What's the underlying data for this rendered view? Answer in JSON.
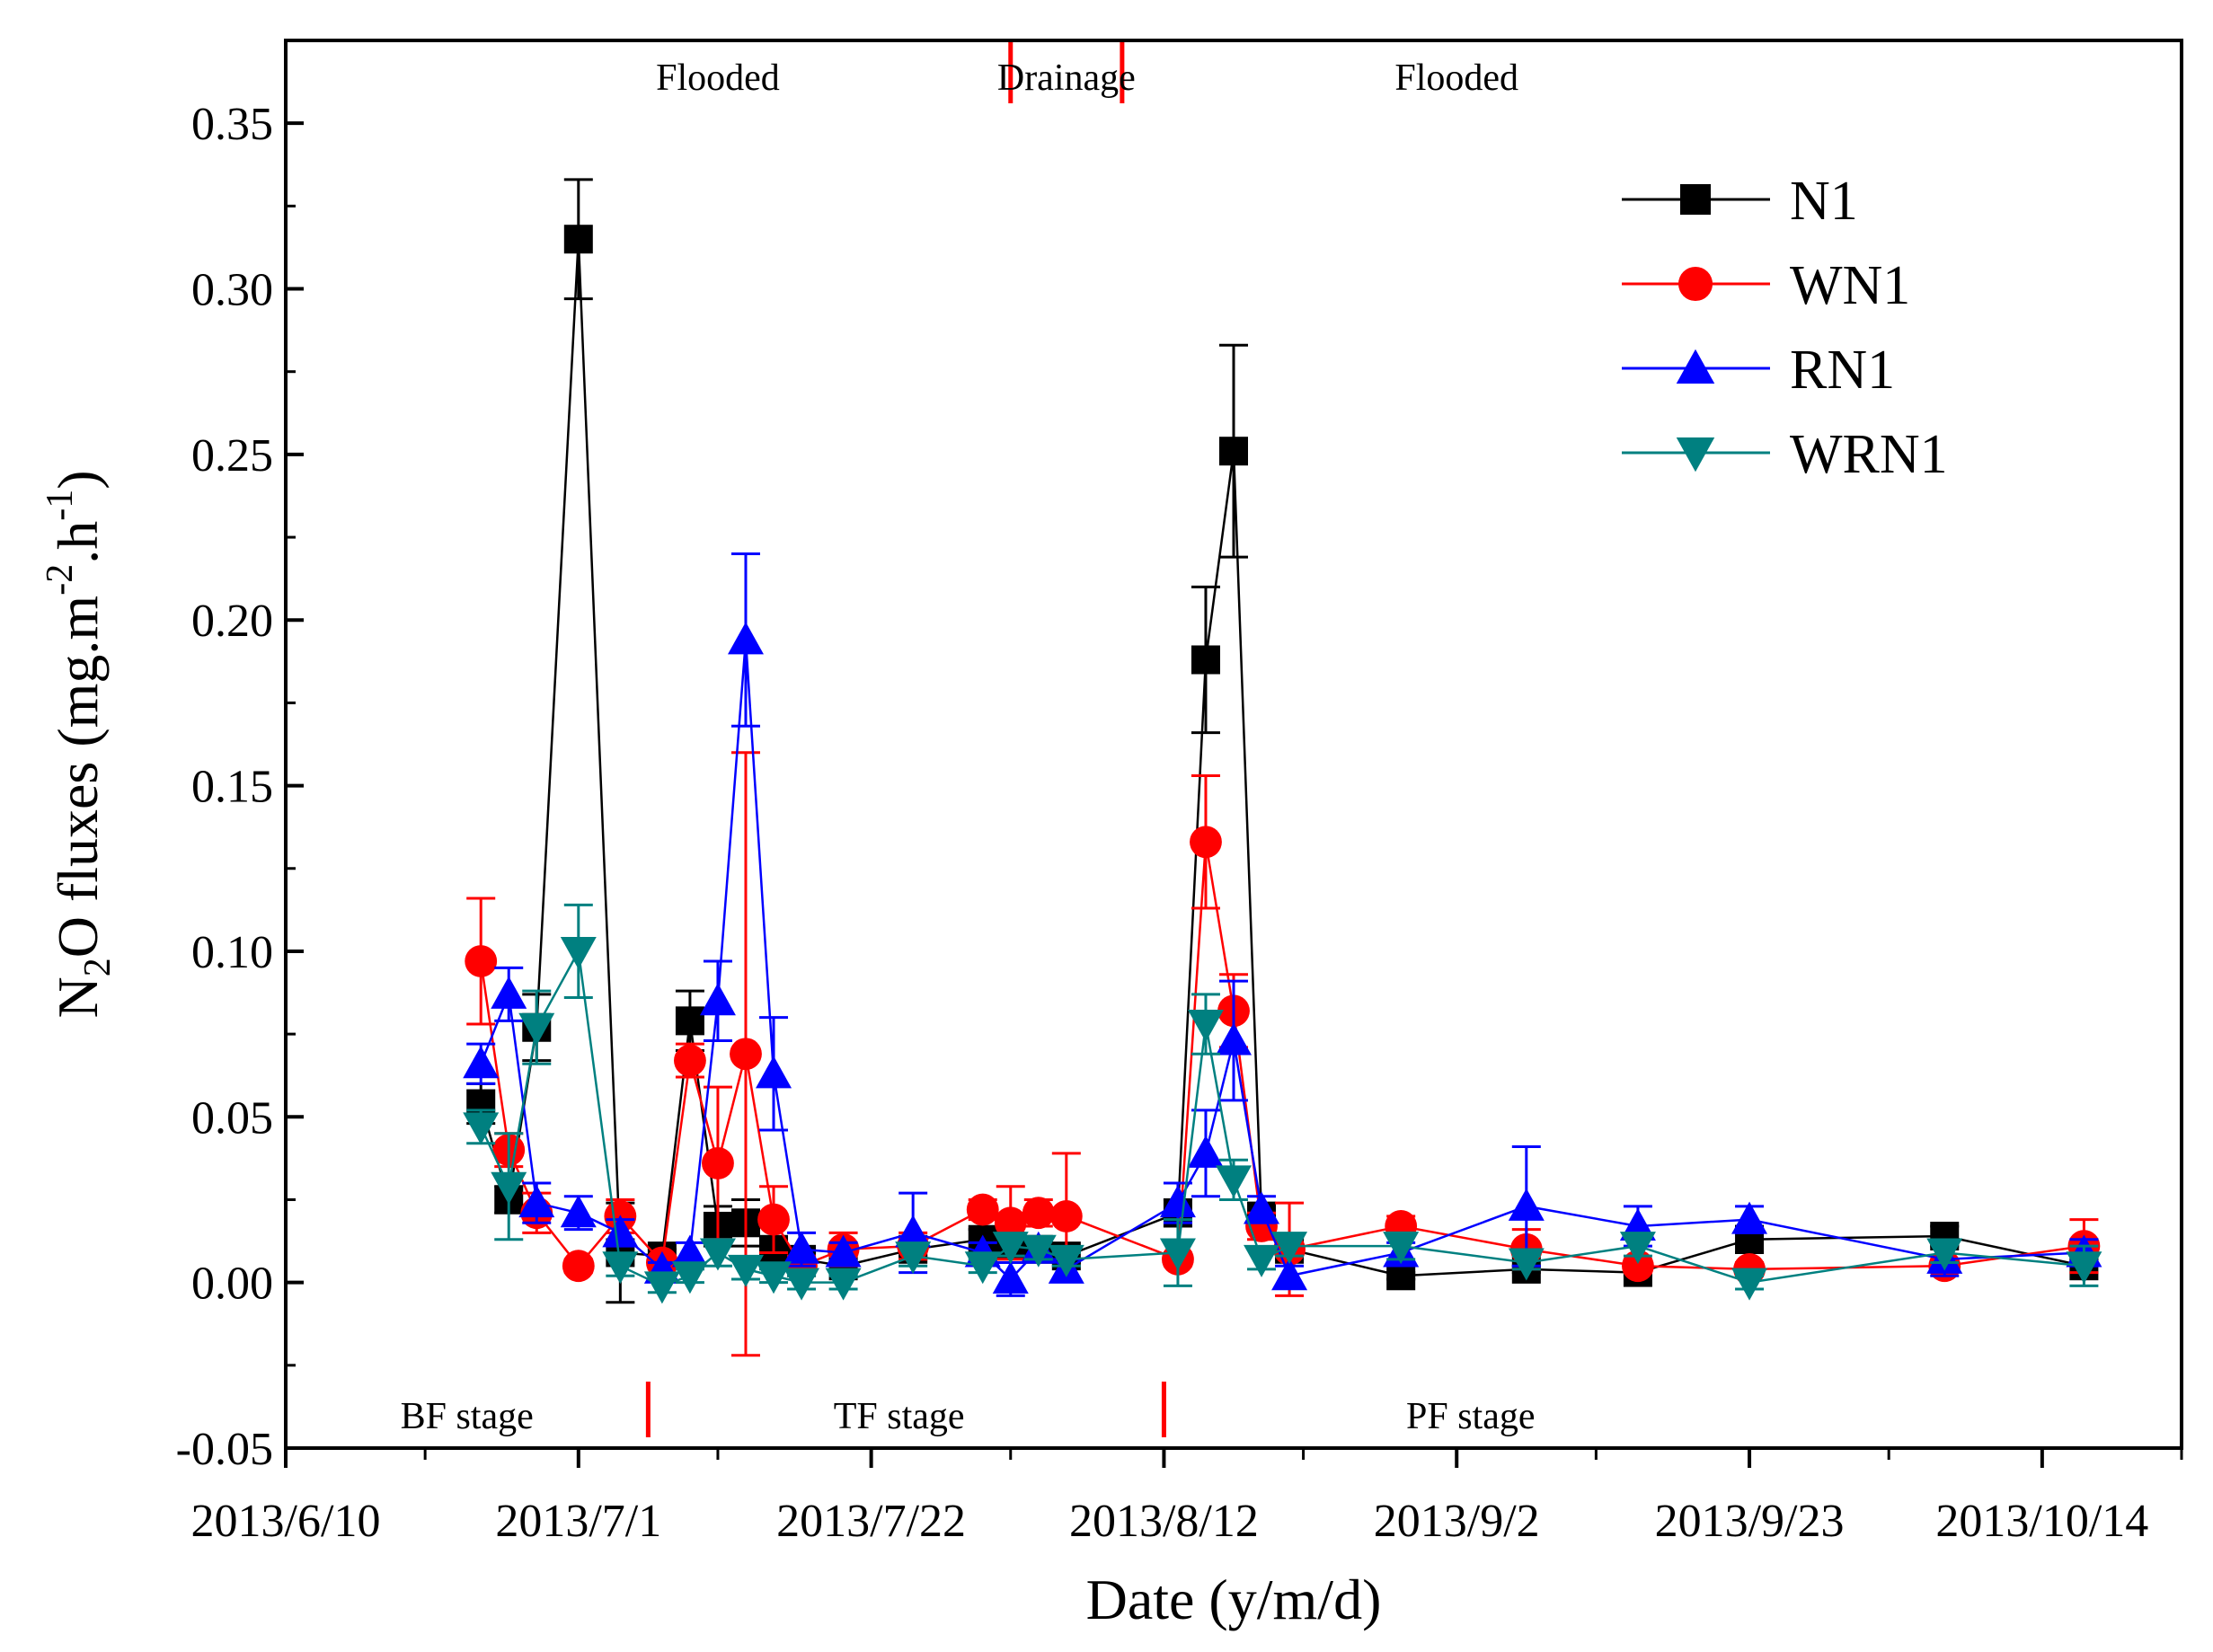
{
  "chart_data": {
    "type": "scatter",
    "xlabel": "Date (y/m/d)",
    "ylabel_parts": [
      "N",
      "2",
      "O fluxes (mg.m",
      "-2",
      ".h",
      "-1",
      ")"
    ],
    "ylim": [
      -0.05,
      0.375
    ],
    "xlim": [
      "2013-06-10",
      "2013-10-24"
    ],
    "y_ticks": [
      "0.35",
      "0.30",
      "0.25",
      "0.20",
      "0.15",
      "0.10",
      "0.05",
      "0.00",
      "-0.05"
    ],
    "y_tick_values": [
      0.35,
      0.3,
      0.25,
      0.2,
      0.15,
      0.1,
      0.05,
      0.0,
      -0.05
    ],
    "x_ticks": [
      "2013/6/10",
      "2013/7/1",
      "2013/7/22",
      "2013/8/12",
      "2013/9/2",
      "2013/9/23",
      "2013/10/14"
    ],
    "x_tick_dates": [
      "2013-06-10",
      "2013-07-01",
      "2013-07-22",
      "2013-08-12",
      "2013-09-02",
      "2013-09-23",
      "2013-10-14"
    ],
    "x_minor_dates": [
      "2013-06-20",
      "2013-07-11",
      "2013-08-01",
      "2013-08-22",
      "2013-09-12",
      "2013-10-03",
      "2013-10-24"
    ],
    "legend_position": "top-right",
    "water_annotations": [
      {
        "text": "Flooded",
        "date": "2013-07-11"
      },
      {
        "text": "Drainage",
        "date": "2013-08-05"
      },
      {
        "text": "Flooded",
        "date": "2013-09-02"
      }
    ],
    "water_dividers": [
      "2013-08-01",
      "2013-08-09"
    ],
    "stage_annotations": [
      {
        "text": "BF stage",
        "date": "2013-06-23"
      },
      {
        "text": "TF stage",
        "date": "2013-07-24"
      },
      {
        "text": "PF stage",
        "date": "2013-09-03"
      }
    ],
    "stage_dividers": [
      "2013-07-06",
      "2013-08-12"
    ],
    "series": [
      {
        "name": "N1",
        "color": "#000000",
        "marker": "square",
        "points": [
          {
            "x": "2013-06-24",
            "y": 0.054,
            "err": 0.006
          },
          {
            "x": "2013-06-26",
            "y": 0.025,
            "err": 0.004
          },
          {
            "x": "2013-06-28",
            "y": 0.077,
            "err": 0.01
          },
          {
            "x": "2013-07-01",
            "y": 0.315,
            "err": 0.018
          },
          {
            "x": "2013-07-04",
            "y": 0.009,
            "err": 0.015
          },
          {
            "x": "2013-07-07",
            "y": 0.008,
            "err": 0.002
          },
          {
            "x": "2013-07-09",
            "y": 0.079,
            "err": 0.009
          },
          {
            "x": "2013-07-11",
            "y": 0.017,
            "err": 0.006
          },
          {
            "x": "2013-07-13",
            "y": 0.018,
            "err": 0.007
          },
          {
            "x": "2013-07-15",
            "y": 0.01,
            "err": 0.003
          },
          {
            "x": "2013-07-17",
            "y": 0.007,
            "err": 0.002
          },
          {
            "x": "2013-07-20",
            "y": 0.005,
            "err": 0.002
          },
          {
            "x": "2013-07-25",
            "y": 0.01,
            "err": 0.002
          },
          {
            "x": "2013-07-30",
            "y": 0.013,
            "err": 0.003
          },
          {
            "x": "2013-08-01",
            "y": 0.011,
            "err": 0.003
          },
          {
            "x": "2013-08-03",
            "y": 0.01,
            "err": 0.002
          },
          {
            "x": "2013-08-05",
            "y": 0.008,
            "err": 0.002
          },
          {
            "x": "2013-08-13",
            "y": 0.021,
            "err": 0.004
          },
          {
            "x": "2013-08-15",
            "y": 0.188,
            "err": 0.022
          },
          {
            "x": "2013-08-17",
            "y": 0.251,
            "err": 0.032
          },
          {
            "x": "2013-08-19",
            "y": 0.02,
            "err": 0.004
          },
          {
            "x": "2013-08-21",
            "y": 0.01,
            "err": 0.003
          },
          {
            "x": "2013-08-29",
            "y": 0.002,
            "err": 0.001
          },
          {
            "x": "2013-09-07",
            "y": 0.004,
            "err": 0.001
          },
          {
            "x": "2013-09-15",
            "y": 0.003,
            "err": 0.001
          },
          {
            "x": "2013-09-23",
            "y": 0.013,
            "err": 0.004
          },
          {
            "x": "2013-10-07",
            "y": 0.014,
            "err": 0.003
          },
          {
            "x": "2013-10-17",
            "y": 0.005,
            "err": 0.002
          }
        ]
      },
      {
        "name": "WN1",
        "color": "#ff0000",
        "marker": "circle",
        "points": [
          {
            "x": "2013-06-24",
            "y": 0.097,
            "err": 0.019
          },
          {
            "x": "2013-06-26",
            "y": 0.04,
            "err": 0.005
          },
          {
            "x": "2013-06-28",
            "y": 0.021,
            "err": 0.006
          },
          {
            "x": "2013-07-01",
            "y": 0.005,
            "err": 0.002
          },
          {
            "x": "2013-07-04",
            "y": 0.02,
            "err": 0.005
          },
          {
            "x": "2013-07-07",
            "y": 0.006,
            "err": 0.002
          },
          {
            "x": "2013-07-09",
            "y": 0.067,
            "err": 0.005
          },
          {
            "x": "2013-07-11",
            "y": 0.036,
            "err": 0.023
          },
          {
            "x": "2013-07-13",
            "y": 0.069,
            "err": 0.091
          },
          {
            "x": "2013-07-15",
            "y": 0.019,
            "err": 0.01
          },
          {
            "x": "2013-07-17",
            "y": 0.005,
            "err": 0.003
          },
          {
            "x": "2013-07-20",
            "y": 0.01,
            "err": 0.005
          },
          {
            "x": "2013-07-25",
            "y": 0.011,
            "err": 0.004
          },
          {
            "x": "2013-07-30",
            "y": 0.022,
            "err": 0.003
          },
          {
            "x": "2013-08-01",
            "y": 0.018,
            "err": 0.011
          },
          {
            "x": "2013-08-03",
            "y": 0.021,
            "err": 0.004
          },
          {
            "x": "2013-08-05",
            "y": 0.02,
            "err": 0.019
          },
          {
            "x": "2013-08-13",
            "y": 0.007,
            "err": 0.002
          },
          {
            "x": "2013-08-15",
            "y": 0.133,
            "err": 0.02
          },
          {
            "x": "2013-08-17",
            "y": 0.082,
            "err": 0.011
          },
          {
            "x": "2013-08-19",
            "y": 0.017,
            "err": 0.004
          },
          {
            "x": "2013-08-21",
            "y": 0.01,
            "err": 0.014
          },
          {
            "x": "2013-08-29",
            "y": 0.017,
            "err": 0.003
          },
          {
            "x": "2013-09-07",
            "y": 0.01,
            "err": 0.006
          },
          {
            "x": "2013-09-15",
            "y": 0.005,
            "err": 0.002
          },
          {
            "x": "2013-09-23",
            "y": 0.004,
            "err": 0.002
          },
          {
            "x": "2013-10-07",
            "y": 0.005,
            "err": 0.002
          },
          {
            "x": "2013-10-17",
            "y": 0.011,
            "err": 0.008
          }
        ]
      },
      {
        "name": "RN1",
        "color": "#0000ff",
        "marker": "triangle-up",
        "points": [
          {
            "x": "2013-06-24",
            "y": 0.066,
            "err": 0.006
          },
          {
            "x": "2013-06-26",
            "y": 0.087,
            "err": 0.008
          },
          {
            "x": "2013-06-28",
            "y": 0.024,
            "err": 0.006
          },
          {
            "x": "2013-07-01",
            "y": 0.021,
            "err": 0.005
          },
          {
            "x": "2013-07-04",
            "y": 0.015,
            "err": 0.004
          },
          {
            "x": "2013-07-07",
            "y": 0.004,
            "err": 0.002
          },
          {
            "x": "2013-07-09",
            "y": 0.009,
            "err": 0.003
          },
          {
            "x": "2013-07-11",
            "y": 0.085,
            "err": 0.012
          },
          {
            "x": "2013-07-13",
            "y": 0.194,
            "err": 0.026
          },
          {
            "x": "2013-07-15",
            "y": 0.063,
            "err": 0.017
          },
          {
            "x": "2013-07-17",
            "y": 0.01,
            "err": 0.005
          },
          {
            "x": "2013-07-20",
            "y": 0.009,
            "err": 0.003
          },
          {
            "x": "2013-07-25",
            "y": 0.015,
            "err": 0.012
          },
          {
            "x": "2013-07-30",
            "y": 0.009,
            "err": 0.003
          },
          {
            "x": "2013-08-01",
            "y": 0.001,
            "err": 0.005
          },
          {
            "x": "2013-08-03",
            "y": 0.01,
            "err": 0.003
          },
          {
            "x": "2013-08-05",
            "y": 0.004,
            "err": 0.003
          },
          {
            "x": "2013-08-13",
            "y": 0.024,
            "err": 0.006
          },
          {
            "x": "2013-08-15",
            "y": 0.039,
            "err": 0.013
          },
          {
            "x": "2013-08-17",
            "y": 0.073,
            "err": 0.018
          },
          {
            "x": "2013-08-19",
            "y": 0.022,
            "err": 0.004
          },
          {
            "x": "2013-08-21",
            "y": 0.002,
            "err": 0.003
          },
          {
            "x": "2013-08-29",
            "y": 0.009,
            "err": 0.003
          },
          {
            "x": "2013-09-07",
            "y": 0.023,
            "err": 0.018
          },
          {
            "x": "2013-09-15",
            "y": 0.017,
            "err": 0.006
          },
          {
            "x": "2013-09-23",
            "y": 0.019,
            "err": 0.004
          },
          {
            "x": "2013-10-07",
            "y": 0.007,
            "err": 0.005
          },
          {
            "x": "2013-10-17",
            "y": 0.009,
            "err": 0.004
          }
        ]
      },
      {
        "name": "WRN1",
        "color": "#008080",
        "marker": "triangle-down",
        "points": [
          {
            "x": "2013-06-24",
            "y": 0.047,
            "err": 0.005
          },
          {
            "x": "2013-06-26",
            "y": 0.029,
            "err": 0.016
          },
          {
            "x": "2013-06-28",
            "y": 0.077,
            "err": 0.011
          },
          {
            "x": "2013-07-01",
            "y": 0.1,
            "err": 0.014
          },
          {
            "x": "2013-07-04",
            "y": 0.005,
            "err": 0.003
          },
          {
            "x": "2013-07-07",
            "y": -0.001,
            "err": 0.002
          },
          {
            "x": "2013-07-09",
            "y": 0.002,
            "err": 0.002
          },
          {
            "x": "2013-07-11",
            "y": 0.009,
            "err": 0.004
          },
          {
            "x": "2013-07-13",
            "y": 0.004,
            "err": 0.003
          },
          {
            "x": "2013-07-15",
            "y": 0.002,
            "err": 0.002
          },
          {
            "x": "2013-07-17",
            "y": 0.0,
            "err": 0.002
          },
          {
            "x": "2013-07-20",
            "y": 0.0,
            "err": 0.002
          },
          {
            "x": "2013-07-25",
            "y": 0.008,
            "err": 0.003
          },
          {
            "x": "2013-07-30",
            "y": 0.005,
            "err": 0.002
          },
          {
            "x": "2013-08-01",
            "y": 0.011,
            "err": 0.003
          },
          {
            "x": "2013-08-03",
            "y": 0.01,
            "err": 0.003
          },
          {
            "x": "2013-08-05",
            "y": 0.007,
            "err": 0.002
          },
          {
            "x": "2013-08-13",
            "y": 0.009,
            "err": 0.01
          },
          {
            "x": "2013-08-15",
            "y": 0.078,
            "err": 0.009
          },
          {
            "x": "2013-08-17",
            "y": 0.031,
            "err": 0.006
          },
          {
            "x": "2013-08-19",
            "y": 0.007,
            "err": 0.003
          },
          {
            "x": "2013-08-21",
            "y": 0.011,
            "err": 0.003
          },
          {
            "x": "2013-08-29",
            "y": 0.011,
            "err": 0.004
          },
          {
            "x": "2013-09-07",
            "y": 0.006,
            "err": 0.002
          },
          {
            "x": "2013-09-15",
            "y": 0.011,
            "err": 0.003
          },
          {
            "x": "2013-09-23",
            "y": 0.0,
            "err": 0.002
          },
          {
            "x": "2013-10-07",
            "y": 0.009,
            "err": 0.003
          },
          {
            "x": "2013-10-17",
            "y": 0.005,
            "err": 0.006
          }
        ]
      }
    ]
  }
}
